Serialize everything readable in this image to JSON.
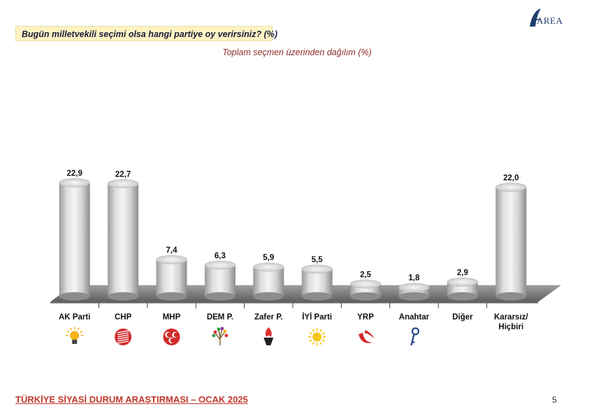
{
  "header": {
    "question": "Bugün milletvekili seçimi olsa hangi partiye oy verirsiniz? (%)",
    "subtitle": "Toplam seçmen üzerinden dağılım (%)",
    "logo_text": "AREA"
  },
  "footer": {
    "title": "TÜRKİYE SİYASİ DURUM ARAŞTIRMASI – OCAK 2025",
    "page": "5"
  },
  "colors": {
    "accent_red": "#c0392b",
    "question_bg": "#fdf3c2",
    "subtitle": "#8b2a2a",
    "bar": "#d9d9d9"
  },
  "chart_data": {
    "type": "bar",
    "title": "",
    "xlabel": "",
    "ylabel": "",
    "ylim": [
      0,
      25
    ],
    "grid": false,
    "categories": [
      "AK Parti",
      "CHP",
      "MHP",
      "DEM P.",
      "Zafer P.",
      "İYİ Parti",
      "YRP",
      "Anahtar",
      "Diğer",
      "Kararsız/ Hiçbiri"
    ],
    "category_lines": [
      [
        "AK Parti"
      ],
      [
        "CHP"
      ],
      [
        "MHP"
      ],
      [
        "DEM P."
      ],
      [
        "Zafer P."
      ],
      [
        "İYİ Parti"
      ],
      [
        "YRP"
      ],
      [
        "Anahtar"
      ],
      [
        "Diğer"
      ],
      [
        "Kararsız/",
        "Hiçbiri"
      ]
    ],
    "values": [
      22.9,
      22.7,
      7.4,
      6.3,
      5.9,
      5.5,
      2.5,
      1.8,
      2.9,
      22.0
    ],
    "value_labels": [
      "22,9",
      "22,7",
      "7,4",
      "6,3",
      "5,9",
      "5,5",
      "2,5",
      "1,8",
      "2,9",
      "22,0"
    ],
    "icons": [
      "lightbulb-icon",
      "six-arrows-icon",
      "three-crescents-icon",
      "tree-icon",
      "torch-icon",
      "sun-icon",
      "crescent-icon",
      "key-icon",
      "",
      ""
    ]
  }
}
